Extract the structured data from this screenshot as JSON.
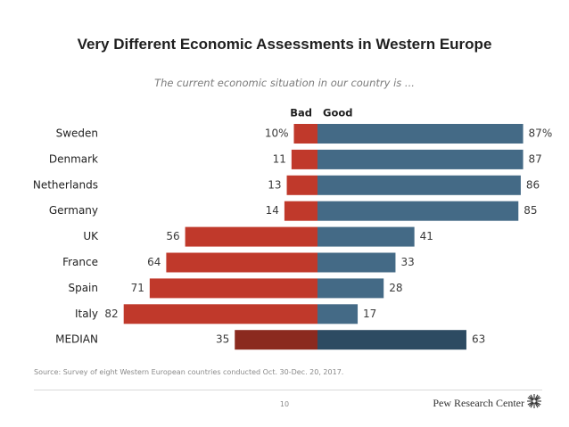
{
  "title": "Very Different Economic Assessments in Western Europe",
  "subtitle": "The current economic situation in our country is ...",
  "source": "Source: Survey of eight Western European countries conducted Oct. 30-Dec. 20, 2017.",
  "page_number": "10",
  "brand": "Pew Research Center",
  "colors": {
    "bad": "#c0392b",
    "good": "#446a86",
    "bad_median": "#8b2a1f",
    "good_median": "#2d4b62",
    "text": "#1f1f1f",
    "value_text": "#3a3a3a"
  },
  "chart_data": {
    "type": "bar",
    "orientation": "diverging-horizontal",
    "categories": [
      "Sweden",
      "Denmark",
      "Netherlands",
      "Germany",
      "UK",
      "France",
      "Spain",
      "Italy",
      "MEDIAN"
    ],
    "series": [
      {
        "name": "Bad",
        "values": [
          10,
          11,
          13,
          14,
          56,
          64,
          71,
          82,
          35
        ]
      },
      {
        "name": "Good",
        "values": [
          87,
          87,
          86,
          85,
          41,
          33,
          28,
          17,
          63
        ]
      }
    ],
    "first_row_suffix": "%",
    "legend": [
      "Bad",
      "Good"
    ],
    "xlim": [
      -100,
      100
    ]
  }
}
